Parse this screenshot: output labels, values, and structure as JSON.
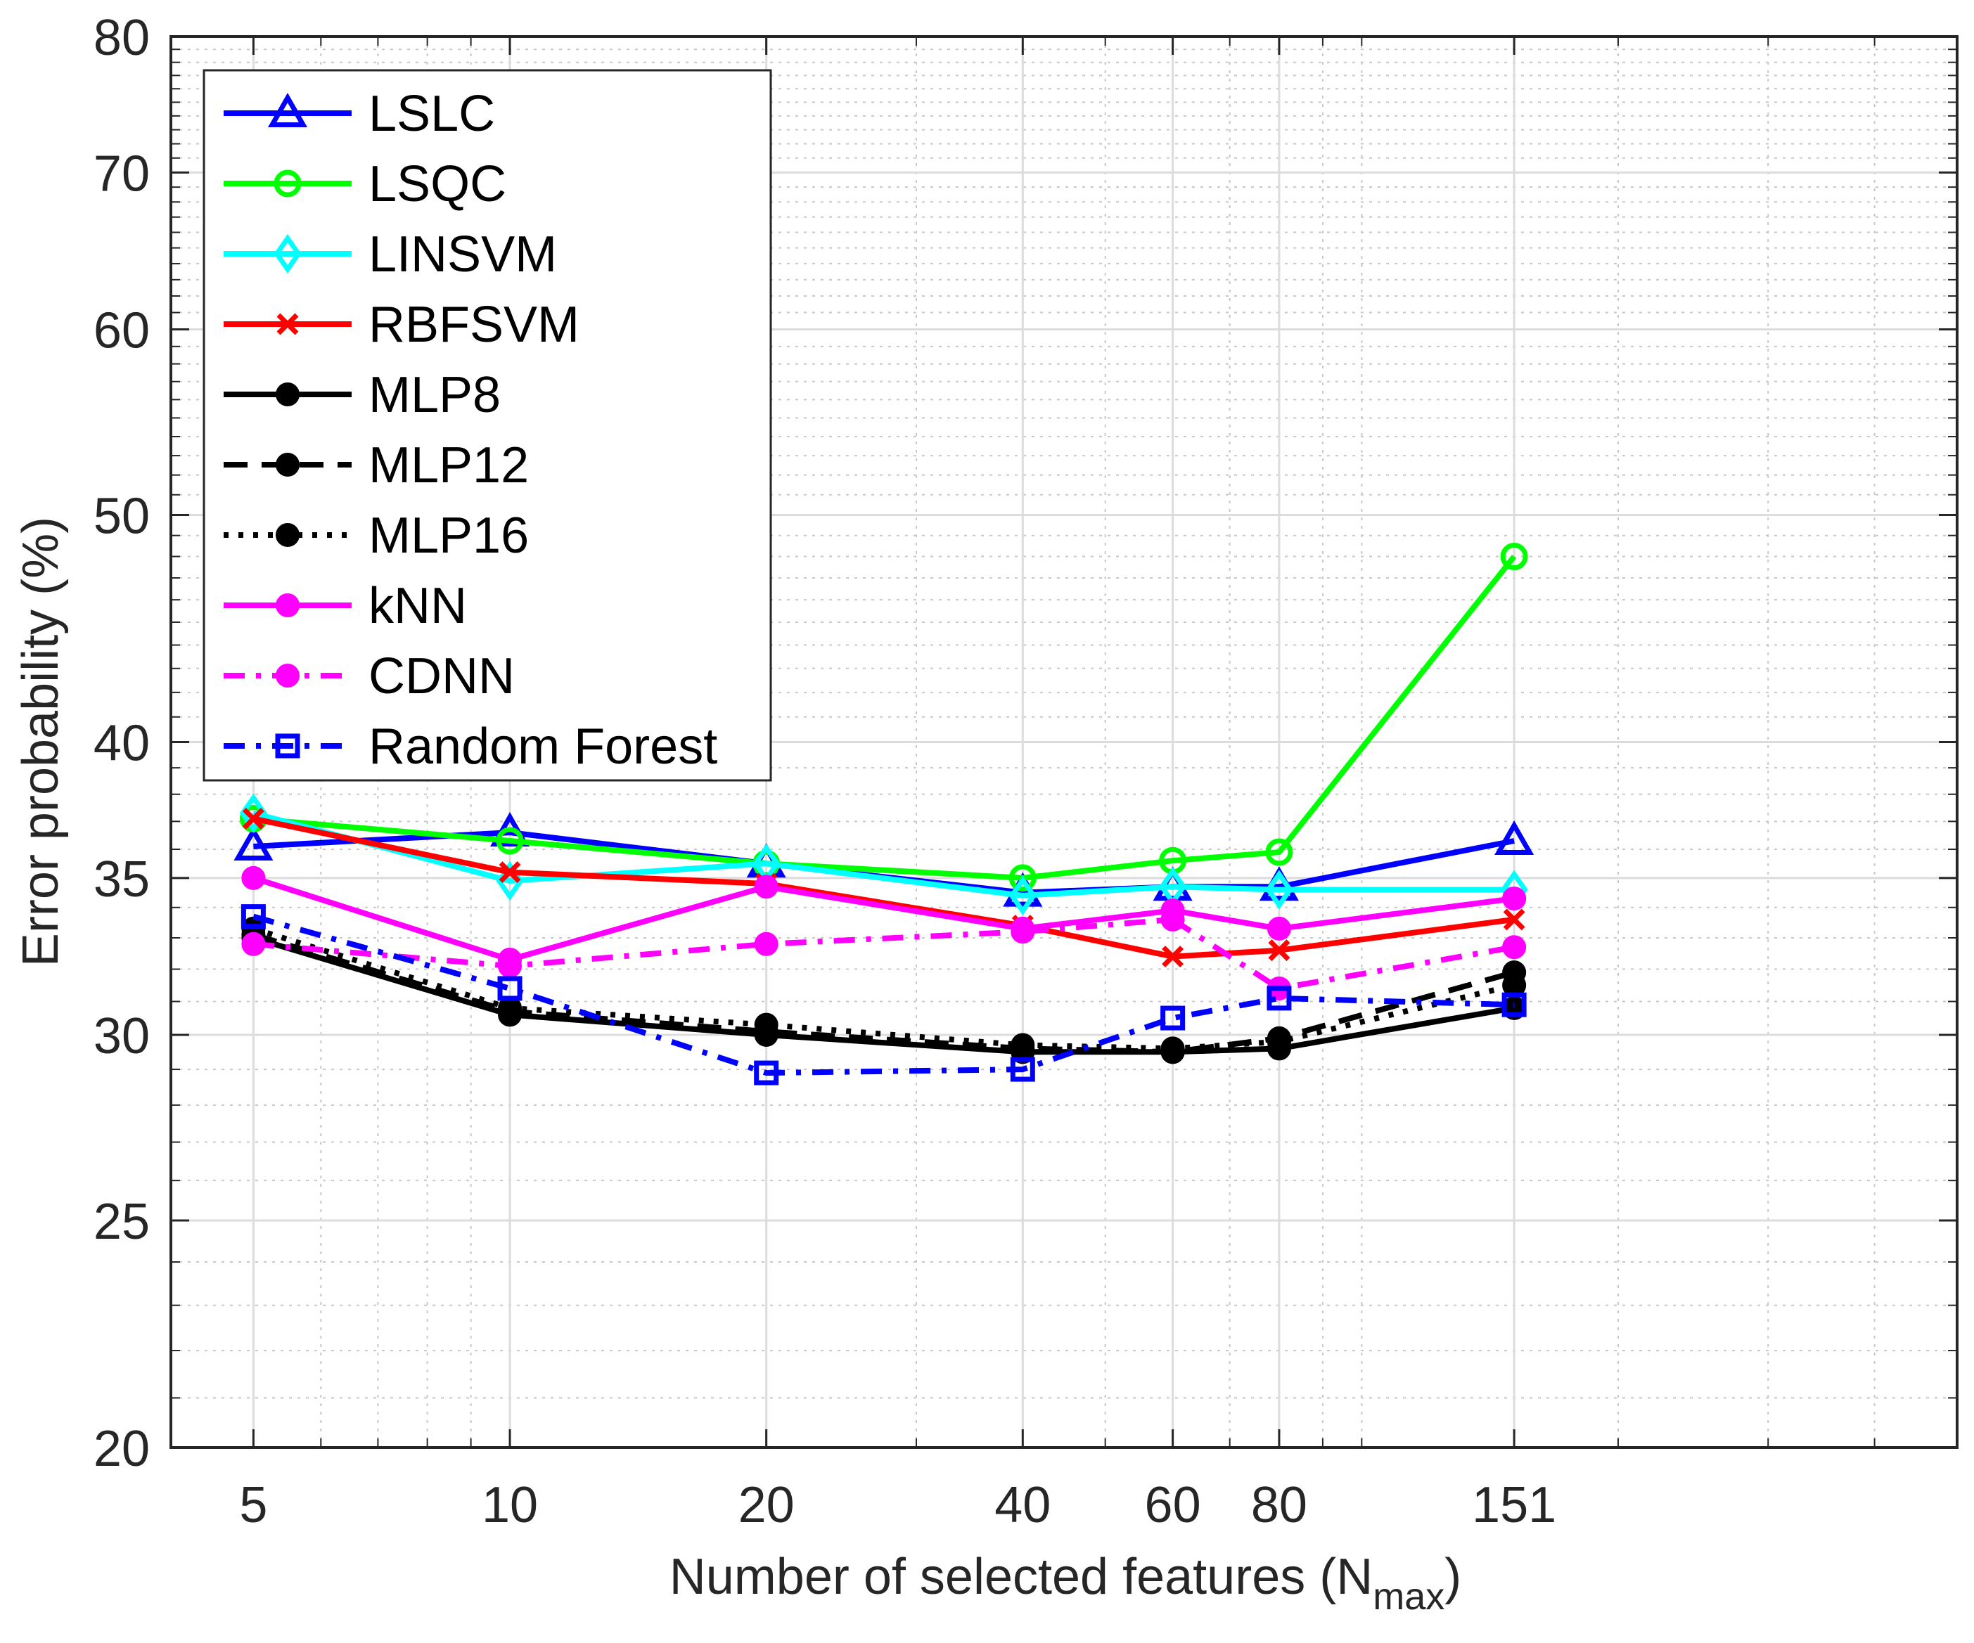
{
  "chart_data": {
    "type": "line",
    "xscale": "log",
    "yscale": "log",
    "x": [
      5,
      10,
      20,
      40,
      60,
      80,
      151
    ],
    "x_tick_labels": [
      "5",
      "10",
      "20",
      "40",
      "60",
      "80",
      "151"
    ],
    "xlim": [
      4,
      500
    ],
    "ylim": [
      20,
      80
    ],
    "y_ticks": [
      20,
      25,
      30,
      35,
      40,
      50,
      60,
      70,
      80
    ],
    "y_tick_labels": [
      "20",
      "25",
      "30",
      "35",
      "40",
      "50",
      "60",
      "70",
      "80"
    ],
    "xlabel": "Number of selected features (N",
    "xlabel_subscript": "max",
    "xlabel_close": ")",
    "ylabel": "Error probability (%)",
    "grid": true,
    "legend_position": "top-left",
    "series": [
      {
        "name": "LSLC",
        "color": "#0000ff",
        "line": "solid",
        "marker": "triangle",
        "values": [
          36.1,
          36.6,
          35.5,
          34.5,
          34.7,
          34.7,
          36.3
        ]
      },
      {
        "name": "LSQC",
        "color": "#00ff00",
        "line": "solid",
        "marker": "circle-open",
        "values": [
          37.1,
          36.3,
          35.5,
          35.0,
          35.6,
          35.9,
          48.0
        ]
      },
      {
        "name": "LINSVM",
        "color": "#00ffff",
        "line": "solid",
        "marker": "diamond",
        "values": [
          37.3,
          34.9,
          35.5,
          34.4,
          34.7,
          34.6,
          34.6
        ]
      },
      {
        "name": "RBFSVM",
        "color": "#ff0000",
        "line": "solid",
        "marker": "x",
        "values": [
          37.1,
          35.2,
          34.8,
          33.4,
          32.4,
          32.6,
          33.6
        ]
      },
      {
        "name": "MLP8",
        "color": "#000000",
        "line": "solid",
        "marker": "dot",
        "values": [
          33.0,
          30.6,
          30.0,
          29.5,
          29.5,
          29.6,
          30.8
        ]
      },
      {
        "name": "MLP12",
        "color": "#000000",
        "line": "dashed",
        "marker": "dot",
        "values": [
          33.1,
          30.7,
          30.1,
          29.6,
          29.5,
          29.9,
          31.9
        ]
      },
      {
        "name": "MLP16",
        "color": "#000000",
        "line": "dotted",
        "marker": "dot",
        "values": [
          33.3,
          30.8,
          30.3,
          29.7,
          29.6,
          29.8,
          31.5
        ]
      },
      {
        "name": "kNN",
        "color": "#ff00ff",
        "line": "solid",
        "marker": "dot",
        "values": [
          35.0,
          32.3,
          34.7,
          33.3,
          33.9,
          33.3,
          34.3
        ]
      },
      {
        "name": "CDNN",
        "color": "#ff00ff",
        "line": "dashdot",
        "marker": "dot",
        "values": [
          32.8,
          32.1,
          32.8,
          33.2,
          33.6,
          31.4,
          32.7
        ]
      },
      {
        "name": "Random Forest",
        "color": "#0000ff",
        "line": "dashdot",
        "marker": "square",
        "values": [
          33.7,
          31.4,
          28.9,
          29.0,
          30.5,
          31.1,
          30.9
        ]
      }
    ]
  }
}
